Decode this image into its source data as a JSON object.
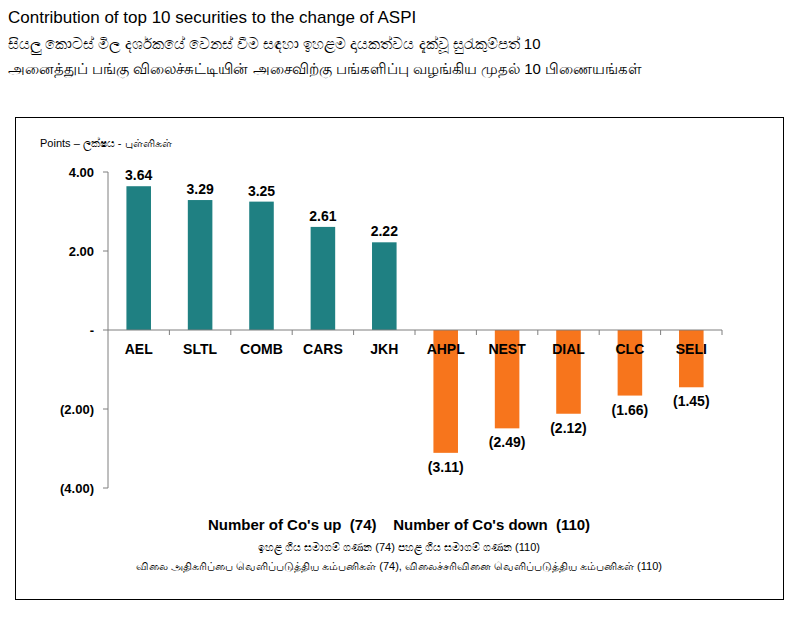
{
  "chart_data": {
    "type": "bar",
    "title": "Contribution of top 10 securities to the change of ASPI",
    "subtitle": [
      "සියලු කොටස් මිල දර්ශකයේ වෙනස් වීම සඳහා ඉහළම දායකත්වය දැක්වූ සුරැකුම්පත් 10",
      "அனைத்துப் பங்கு விலைச்சுட்டியின் அசைவிற்கு பங்களிப்பு வழங்கிய முதல் 10 பிணையங்கள்"
    ],
    "y_label": "Points – ලක්ෂය - புள்ளிகள்",
    "categories": [
      "AEL",
      "SLTL",
      "COMB",
      "CARS",
      "JKH",
      "AHPL",
      "NEST",
      "DIAL",
      "CLC",
      "SELI"
    ],
    "values": [
      3.64,
      3.29,
      3.25,
      2.61,
      2.22,
      -3.11,
      -2.49,
      -2.12,
      -1.66,
      -1.45
    ],
    "value_labels": [
      "3.64",
      "3.29",
      "3.25",
      "2.61",
      "2.22",
      "(3.11)",
      "(2.49)",
      "(2.12)",
      "(1.66)",
      "(1.45)"
    ],
    "colors": [
      "#1f8082",
      "#1f8082",
      "#1f8082",
      "#1f8082",
      "#1f8082",
      "#f7751c",
      "#f7751c",
      "#f7751c",
      "#f7751c",
      "#f7751c"
    ],
    "ylim": [
      -4,
      4
    ],
    "yticks": [
      {
        "value": 4,
        "label": "4.00"
      },
      {
        "value": 2,
        "label": "2.00"
      },
      {
        "value": 0,
        "label": "-"
      },
      {
        "value": -2,
        "label": "(2.00)"
      },
      {
        "value": -4,
        "label": "(4.00)"
      }
    ],
    "grid": false,
    "data_labels": true,
    "annotations": [
      "Number of Co's up  (74)    Number of Co's down  (110)",
      "ඉහළ ගිය සමාගම් ගණන (74) පහළ ගිය සමාගම් ගණන (110)",
      "விலை அதிகரிப்பை வெளிப்படுத்திய கம்பனிகள் (74), விலைச்சரிவினை வெளிப்படுத்திய கம்பனிகள் (110)"
    ]
  }
}
